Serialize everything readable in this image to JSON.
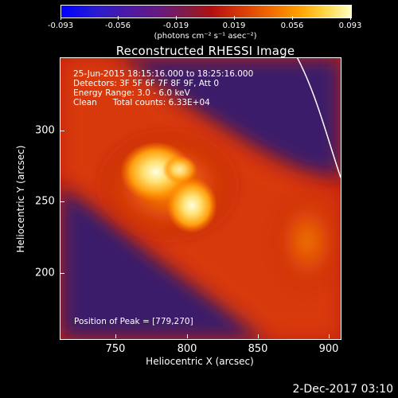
{
  "colorbar": {
    "tick_labels": [
      "-0.093",
      "-0.056",
      "-0.019",
      "0.019",
      "0.056",
      "0.093"
    ],
    "unit_label": "(photons cm⁻² s⁻¹ asec⁻²)"
  },
  "title": "Reconstructed RHESSI Image",
  "annotations": {
    "time_range": "25-Jun-2015 18:15:16.000 to 18:25:16.000",
    "detectors": "Detectors: 3F 5F 6F 7F 8F 9F, Att 0",
    "energy_range": "Energy Range: 3.0 - 6.0 keV",
    "method_counts": "Clean      Total counts: 6.33E+04",
    "peak_position": "Position of Peak = [779,270]"
  },
  "x_axis": {
    "label": "Heliocentric X (arcsec)",
    "tick_labels": [
      "750",
      "800",
      "850",
      "900"
    ]
  },
  "y_axis": {
    "label": "Heliocentric Y (arcsec)",
    "tick_labels": [
      "200",
      "250",
      "300"
    ]
  },
  "timestamp": "2-Dec-2017 03:10",
  "colors": {
    "low": "#2a1b8a",
    "mid": "#c81a0a",
    "high": "#ffffc0"
  }
}
